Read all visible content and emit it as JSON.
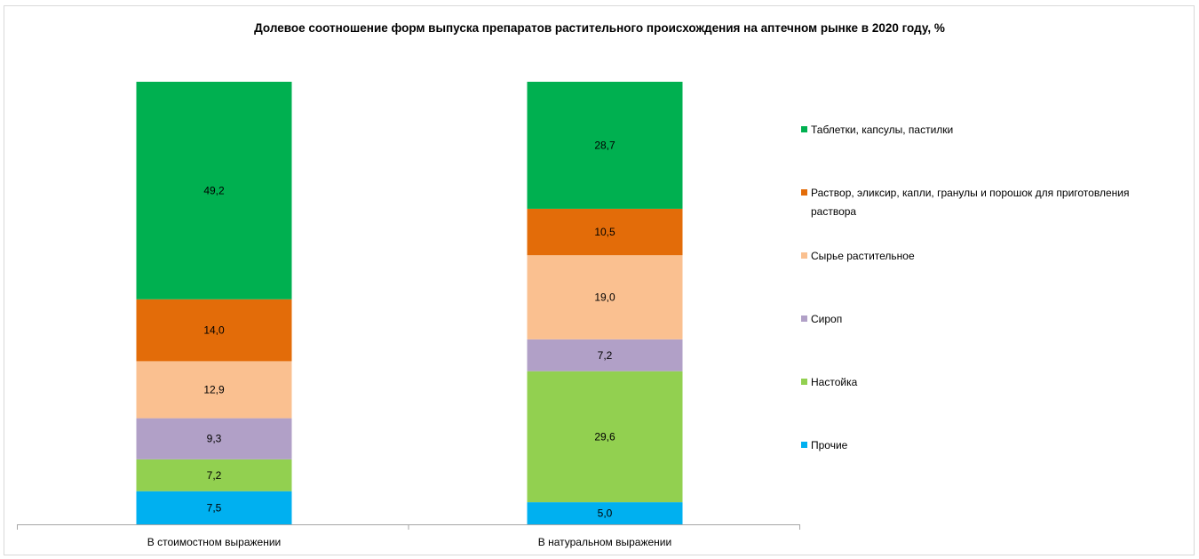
{
  "chart_data": {
    "type": "bar",
    "stacked": true,
    "percent_stacked": true,
    "title": "Долевое соотношение форм выпуска препаратов растительного происхождения на аптечном рынке в 2020 году, %",
    "categories": [
      "В стоимостном выражении",
      "В натуральном выражении"
    ],
    "ylim": [
      0,
      100
    ],
    "grid": false,
    "legend_position": "right",
    "series": [
      {
        "name": "Прочие",
        "values": [
          7.5,
          5.0
        ],
        "labels": [
          "7,5",
          "5,0"
        ],
        "color": "#00b0f0"
      },
      {
        "name": "Настойка",
        "values": [
          7.2,
          29.6
        ],
        "labels": [
          "7,2",
          "29,6"
        ],
        "color": "#92d050"
      },
      {
        "name": "Сироп",
        "values": [
          9.3,
          7.2
        ],
        "labels": [
          "9,3",
          "7,2"
        ],
        "color": "#b1a0c7"
      },
      {
        "name": "Сырье растительное",
        "values": [
          12.9,
          19.0
        ],
        "labels": [
          "12,9",
          "19,0"
        ],
        "color": "#fac090"
      },
      {
        "name": "Раствор, эликсир, капли, гранулы и порошок для приготовления раствора",
        "legend_lines": [
          "Раствор, эликсир, капли, гранулы и порошок для приготовления",
          "раствора"
        ],
        "values": [
          14.0,
          10.5
        ],
        "labels": [
          "14,0",
          "10,5"
        ],
        "color": "#e36c09"
      },
      {
        "name": "Таблетки, капсулы, пастилки",
        "values": [
          49.2,
          28.7
        ],
        "labels": [
          "49,2",
          "28,7"
        ],
        "color": "#00b050"
      }
    ],
    "legend_order": [
      "Таблетки, капсулы, пастилки",
      "Раствор, эликсир, капли, гранулы и порошок для приготовления раствора",
      "Сырье растительное",
      "Сироп",
      "Настойка",
      "Прочие"
    ],
    "axis_color": "#a6a6a6"
  }
}
